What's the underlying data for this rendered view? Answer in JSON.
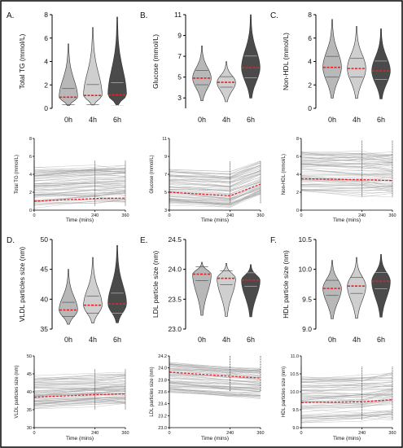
{
  "panels": [
    {
      "id": "A",
      "panel_label": "A.",
      "violin": {
        "ylabel": "Total TG (mmol/L)",
        "ylim": [
          0,
          8
        ],
        "yticks": [
          0,
          2,
          4,
          6,
          8
        ],
        "groups": [
          "0h",
          "4h",
          "6h"
        ],
        "medians": [
          0.95,
          1.1,
          1.15
        ],
        "spread_max": [
          5.5,
          6.9,
          7.8
        ]
      },
      "line": {
        "ylabel": "Total TG (mmol/L)",
        "xlabel": "Time (mins)",
        "ylim": [
          0,
          8
        ],
        "yticks": [
          0,
          2,
          4,
          6,
          8
        ],
        "xticks": [
          0,
          240,
          360
        ],
        "mean": [
          1.0,
          1.3,
          1.35
        ],
        "band": [
          0.5,
          4.5
        ]
      }
    },
    {
      "id": "B",
      "panel_label": "B.",
      "violin": {
        "ylabel": "Glucose (mmol/L)",
        "ylim": [
          2,
          11
        ],
        "yticks": [
          3,
          5,
          7,
          9,
          11
        ],
        "groups": [
          "0h",
          "4h",
          "6h"
        ],
        "medians": [
          4.9,
          4.5,
          5.9
        ],
        "spread_max": [
          8,
          6.5,
          11
        ]
      },
      "line": {
        "ylabel": "Glucose (mmol/L)",
        "xlabel": "Time (mins)",
        "ylim": [
          3,
          11
        ],
        "yticks": [
          3,
          5,
          7,
          9,
          11
        ],
        "xticks": [
          0,
          240,
          360
        ],
        "mean": [
          5.0,
          4.6,
          5.9
        ],
        "band": [
          3.8,
          7.5
        ]
      }
    },
    {
      "id": "C",
      "panel_label": "C.",
      "violin": {
        "ylabel": "Non-HDL (mmol/L)",
        "ylim": [
          0,
          8
        ],
        "yticks": [
          0,
          2,
          4,
          6,
          8
        ],
        "groups": [
          "0h",
          "4h",
          "6h"
        ],
        "medians": [
          3.5,
          3.4,
          3.2
        ],
        "spread_max": [
          7.6,
          7.0,
          6.8
        ]
      },
      "line": {
        "ylabel": "Non-HDL (mmol/L)",
        "xlabel": "Time (mins)",
        "ylim": [
          0,
          8
        ],
        "yticks": [
          0,
          2,
          4,
          6,
          8
        ],
        "xticks": [
          0,
          240,
          360
        ],
        "mean": [
          3.5,
          3.4,
          3.3
        ],
        "band": [
          1.5,
          6.5
        ]
      }
    },
    {
      "id": "D",
      "panel_label": "D.",
      "violin": {
        "ylabel": "VLDL particles size (nm)",
        "ylim": [
          35,
          50
        ],
        "yticks": [
          35,
          40,
          45,
          50
        ],
        "groups": [
          "0h",
          "4h",
          "6h"
        ],
        "medians": [
          38.2,
          39.0,
          39.2
        ],
        "spread_max": [
          45,
          47,
          49
        ]
      },
      "line": {
        "ylabel": "VLDL particles size (nm)",
        "xlabel": "Time (mins)",
        "ylim": [
          30,
          50
        ],
        "yticks": [
          30,
          35,
          40,
          45,
          50
        ],
        "xticks": [
          0,
          240,
          360
        ],
        "mean": [
          38.5,
          39.2,
          39.4
        ],
        "band": [
          35,
          44
        ]
      }
    },
    {
      "id": "E",
      "panel_label": "E.",
      "violin": {
        "ylabel": "LDL particle size (nm)",
        "ylim": [
          23.0,
          24.5
        ],
        "yticks": [
          23.0,
          23.5,
          24.0,
          24.5
        ],
        "groups": [
          "0h",
          "4h",
          "6h"
        ],
        "medians": [
          23.92,
          23.85,
          23.82
        ],
        "spread_max": [
          24.12,
          24.1,
          24.08
        ]
      },
      "line": {
        "ylabel": "LDL particles size (nm)",
        "xlabel": "Time (mins)",
        "ylim": [
          23.0,
          24.2
        ],
        "yticks": [
          23.0,
          23.2,
          23.4,
          23.6,
          23.8,
          24.0,
          24.2
        ],
        "xticks": [
          0,
          240,
          360
        ],
        "mean": [
          23.93,
          23.86,
          23.83
        ],
        "band": [
          23.6,
          24.1
        ]
      }
    },
    {
      "id": "F",
      "panel_label": "F.",
      "violin": {
        "ylabel": "HDL particle size (nm)",
        "ylim": [
          9.0,
          10.5
        ],
        "yticks": [
          9.0,
          9.5,
          10.0,
          10.5
        ],
        "groups": [
          "0h",
          "4h",
          "6h"
        ],
        "medians": [
          9.68,
          9.72,
          9.8
        ],
        "spread_max": [
          10.15,
          10.2,
          10.25
        ]
      },
      "line": {
        "ylabel": "HDL particles size (nm)",
        "xlabel": "Time (mins)",
        "ylim": [
          9.0,
          11.0
        ],
        "yticks": [
          9.0,
          9.5,
          10.0,
          10.5,
          11.0
        ],
        "xticks": [
          0,
          240,
          360
        ],
        "mean": [
          9.7,
          9.72,
          9.78
        ],
        "band": [
          9.2,
          10.4
        ]
      }
    }
  ],
  "chart_data": [
    {
      "type": "violin",
      "title": "A.",
      "ylabel": "Total TG (mmol/L)",
      "categories": [
        "0h",
        "4h",
        "6h"
      ],
      "medians": [
        0.95,
        1.1,
        1.15
      ],
      "ylim": [
        0,
        8
      ]
    },
    {
      "type": "line",
      "title": "A.",
      "ylabel": "Total TG (mmol/L)",
      "xlabel": "Time (mins)",
      "x": [
        0,
        240,
        360
      ],
      "series": [
        {
          "values": [
            1.0,
            1.3,
            1.35
          ]
        }
      ],
      "ylim": [
        0,
        8
      ]
    },
    {
      "type": "violin",
      "title": "B.",
      "ylabel": "Glucose (mmol/L)",
      "categories": [
        "0h",
        "4h",
        "6h"
      ],
      "medians": [
        4.9,
        4.5,
        5.9
      ],
      "ylim": [
        2,
        11
      ]
    },
    {
      "type": "line",
      "title": "B.",
      "ylabel": "Glucose (mmol/L)",
      "xlabel": "Time (mins)",
      "x": [
        0,
        240,
        360
      ],
      "series": [
        {
          "values": [
            5.0,
            4.6,
            5.9
          ]
        }
      ],
      "ylim": [
        3,
        11
      ]
    },
    {
      "type": "violin",
      "title": "C.",
      "ylabel": "Non-HDL (mmol/L)",
      "categories": [
        "0h",
        "4h",
        "6h"
      ],
      "medians": [
        3.5,
        3.4,
        3.2
      ],
      "ylim": [
        0,
        8
      ]
    },
    {
      "type": "line",
      "title": "C.",
      "ylabel": "Non-HDL (mmol/L)",
      "xlabel": "Time (mins)",
      "x": [
        0,
        240,
        360
      ],
      "series": [
        {
          "values": [
            3.5,
            3.4,
            3.3
          ]
        }
      ],
      "ylim": [
        0,
        8
      ]
    },
    {
      "type": "violin",
      "title": "D.",
      "ylabel": "VLDL particles size (nm)",
      "categories": [
        "0h",
        "4h",
        "6h"
      ],
      "medians": [
        38.2,
        39.0,
        39.2
      ],
      "ylim": [
        35,
        50
      ]
    },
    {
      "type": "line",
      "title": "D.",
      "ylabel": "VLDL particles size (nm)",
      "xlabel": "Time (mins)",
      "x": [
        0,
        240,
        360
      ],
      "series": [
        {
          "values": [
            38.5,
            39.2,
            39.4
          ]
        }
      ],
      "ylim": [
        30,
        50
      ]
    },
    {
      "type": "violin",
      "title": "E.",
      "ylabel": "LDL particle size (nm)",
      "categories": [
        "0h",
        "4h",
        "6h"
      ],
      "medians": [
        23.92,
        23.85,
        23.82
      ],
      "ylim": [
        23.0,
        24.5
      ]
    },
    {
      "type": "line",
      "title": "E.",
      "ylabel": "LDL particles size (nm)",
      "xlabel": "Time (mins)",
      "x": [
        0,
        240,
        360
      ],
      "series": [
        {
          "values": [
            23.93,
            23.86,
            23.83
          ]
        }
      ],
      "ylim": [
        23.0,
        24.2
      ]
    },
    {
      "type": "violin",
      "title": "F.",
      "ylabel": "HDL particle size (nm)",
      "categories": [
        "0h",
        "4h",
        "6h"
      ],
      "medians": [
        9.68,
        9.72,
        9.8
      ],
      "ylim": [
        9.0,
        10.5
      ]
    },
    {
      "type": "line",
      "title": "F.",
      "ylabel": "HDL particles size (nm)",
      "xlabel": "Time (mins)",
      "x": [
        0,
        240,
        360
      ],
      "series": [
        {
          "values": [
            9.7,
            9.72,
            9.78
          ]
        }
      ],
      "ylim": [
        9.0,
        11.0
      ]
    }
  ],
  "colors": {
    "median": "#e0242a",
    "violin_0h": "#b8b8b8",
    "violin_4h": "#cfcfcf",
    "violin_6h": "#4a4a4a",
    "lines": "#9a9a9a",
    "frame": "#000000"
  }
}
